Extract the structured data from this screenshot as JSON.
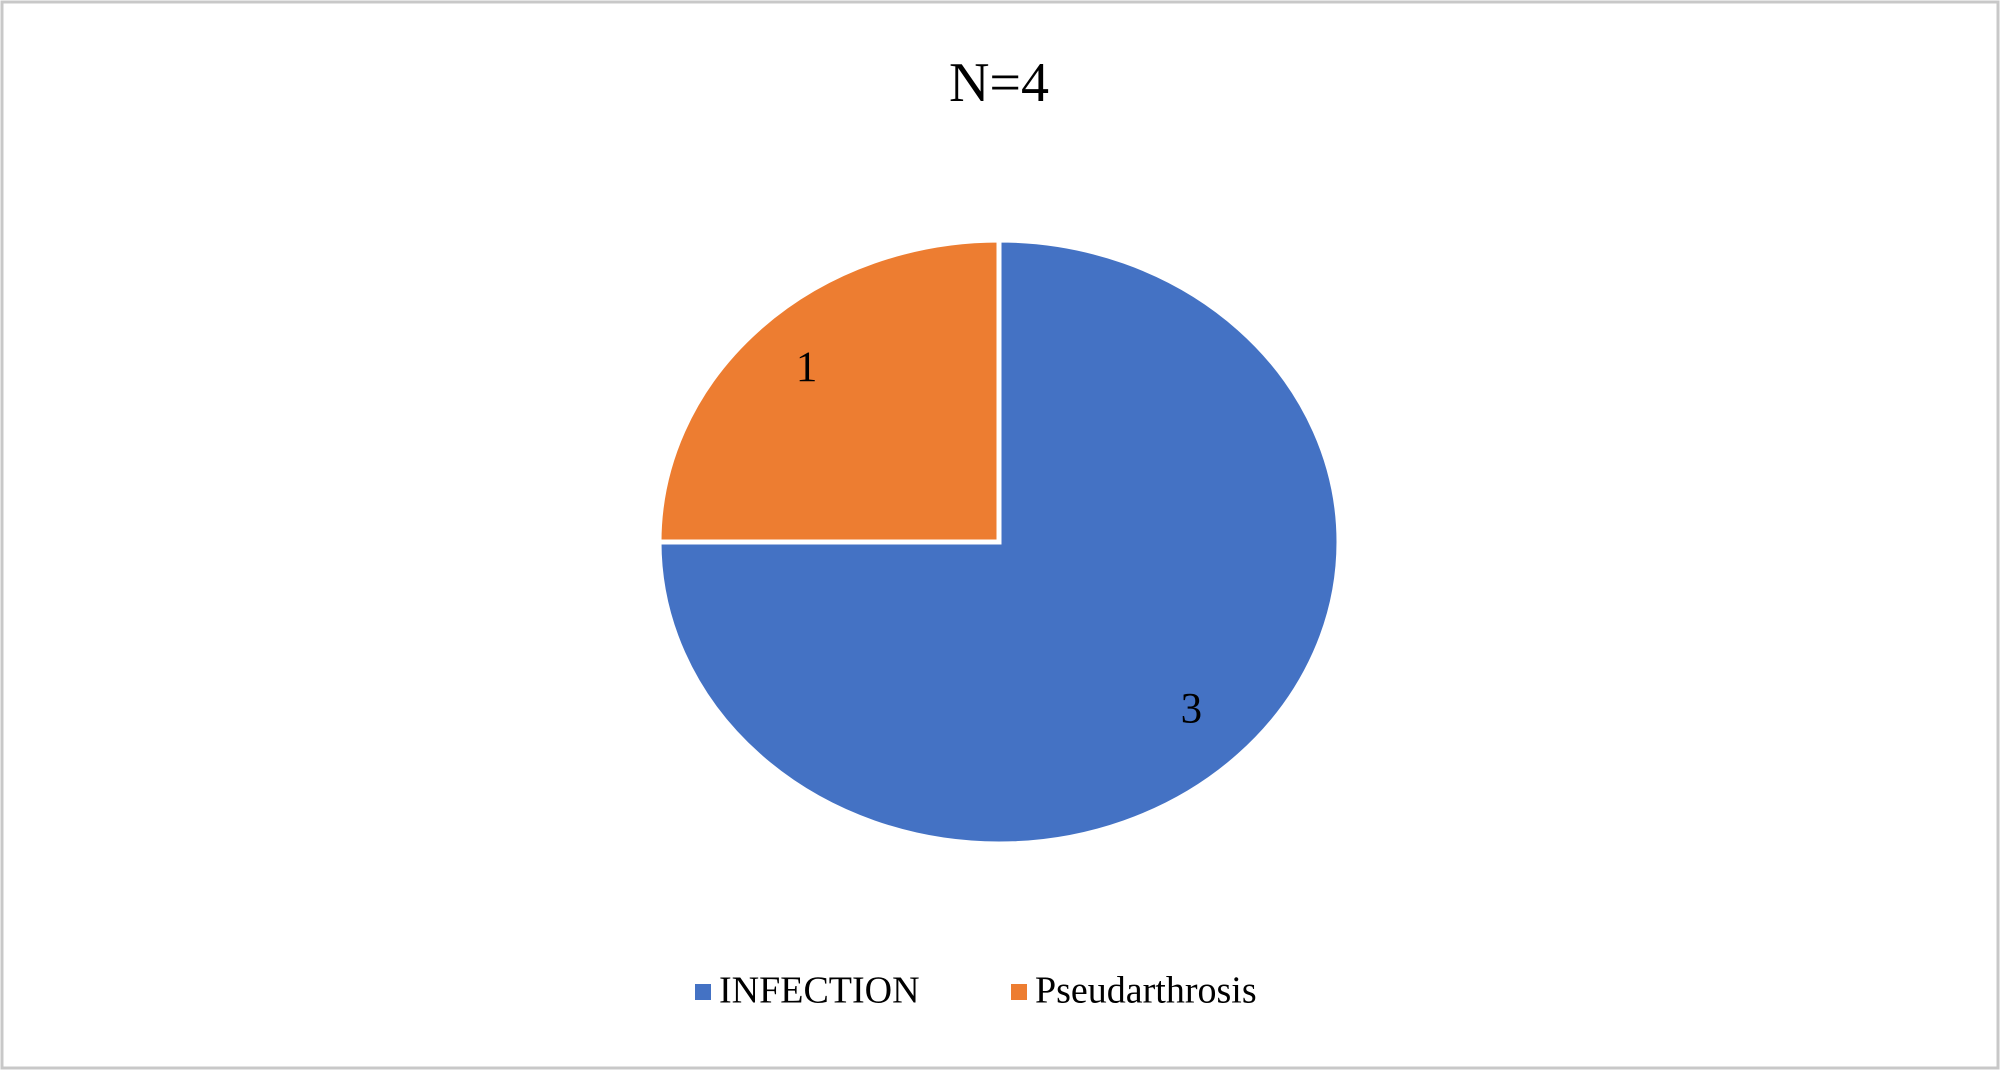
{
  "chart_data": {
    "type": "pie",
    "title": "N=4",
    "categories": [
      "INFECTION",
      "Pseudarthrosis"
    ],
    "values": [
      3,
      1
    ],
    "colors": [
      "#4472c4",
      "#ed7d31"
    ],
    "legend": "bottom"
  }
}
